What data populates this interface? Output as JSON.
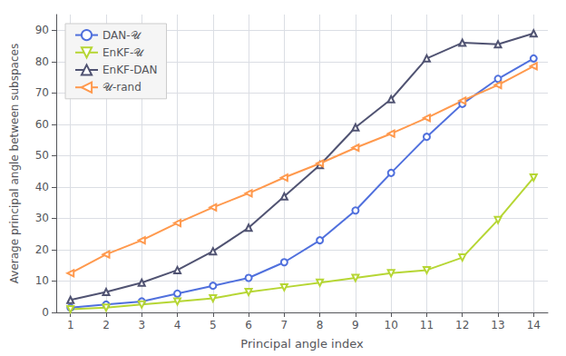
{
  "chart_data": {
    "type": "line",
    "x": [
      1,
      2,
      3,
      4,
      5,
      6,
      7,
      8,
      9,
      10,
      11,
      12,
      13,
      14
    ],
    "series": [
      {
        "name": "DAN-𝒰",
        "marker": "circle",
        "values": [
          1.5,
          2.5,
          3.5,
          6.0,
          8.5,
          11.0,
          16.0,
          23.0,
          32.5,
          44.5,
          56.0,
          66.5,
          74.5,
          81.0
        ]
      },
      {
        "name": "EnKF-𝒰",
        "marker": "triangle_down",
        "values": [
          1.0,
          1.5,
          2.5,
          3.5,
          4.5,
          6.5,
          8.0,
          9.5,
          11.0,
          12.5,
          13.5,
          17.5,
          29.5,
          43.0
        ]
      },
      {
        "name": "EnKF-DAN",
        "marker": "triangle_up",
        "values": [
          4.0,
          6.5,
          9.5,
          13.5,
          19.5,
          27.0,
          37.0,
          47.0,
          59.0,
          68.0,
          81.0,
          86.0,
          85.5,
          89.0
        ]
      },
      {
        "name": "𝒰-rand",
        "marker": "triangle_left",
        "values": [
          12.5,
          18.5,
          23.0,
          28.5,
          33.5,
          38.0,
          43.0,
          47.5,
          52.5,
          57.0,
          62.0,
          67.5,
          72.5,
          78.5
        ]
      }
    ],
    "xlabel": "Principal angle index",
    "ylabel": "Average principal angle between subspaces",
    "xlim": [
      0.6,
      14.4
    ],
    "xticks": [
      1,
      2,
      3,
      4,
      5,
      6,
      7,
      8,
      9,
      10,
      11,
      12,
      13,
      14
    ],
    "ylim": [
      0,
      95
    ],
    "yticks": [
      0,
      10,
      20,
      30,
      40,
      50,
      60,
      70,
      80,
      90
    ],
    "grid": true,
    "legend": "upper left"
  }
}
